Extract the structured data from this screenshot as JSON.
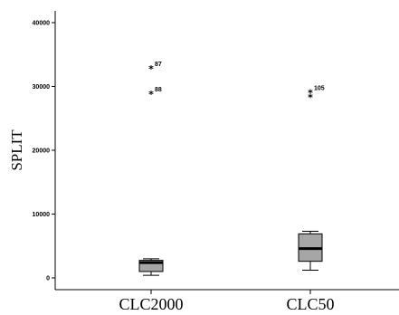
{
  "chart_data": {
    "type": "boxplot",
    "ylabel": "SPLIT",
    "ylim": [
      -1500,
      42000
    ],
    "yticks": [
      0,
      10000,
      20000,
      30000,
      40000
    ],
    "ytick_labels": [
      "0",
      "10000",
      "20000",
      "30000",
      "40000"
    ],
    "categories": [
      "CLC2000",
      "CLC50"
    ],
    "boxes": [
      {
        "category": "CLC2000",
        "whisker_low": 400,
        "q1": 1000,
        "median": 2400,
        "q3": 2750,
        "whisker_high": 3000,
        "outliers": [
          {
            "label": "87",
            "value": 32800
          },
          {
            "label": "88",
            "value": 28800
          }
        ]
      },
      {
        "category": "CLC50",
        "whisker_low": 1200,
        "q1": 2600,
        "median": 4600,
        "q3": 6900,
        "whisker_high": 7300,
        "outliers": [
          {
            "label": "105",
            "value": 29000
          },
          {
            "label": "",
            "value": 28300
          }
        ]
      }
    ],
    "box_color": "#a6a6a6",
    "line_color": "#000000",
    "background": "#ffffff",
    "grid": false,
    "legend": "none"
  }
}
